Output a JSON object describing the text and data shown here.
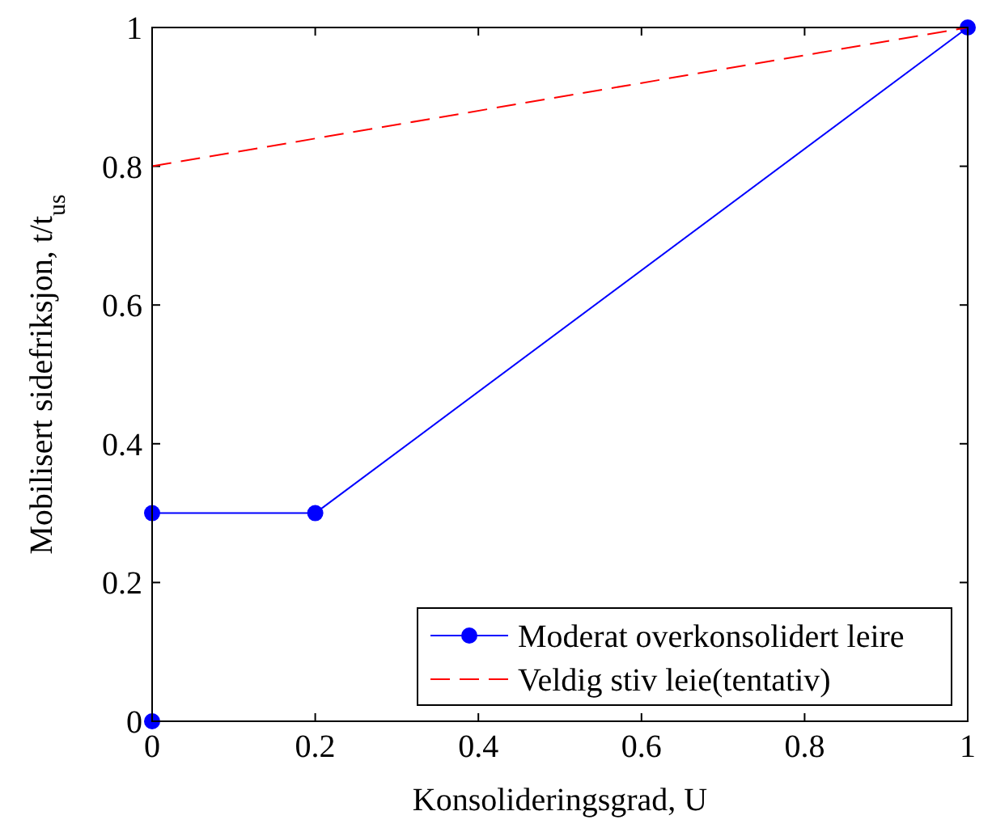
{
  "chart_data": {
    "type": "line",
    "xlabel": "Konsolideringsgrad, U",
    "ylabel": "Mobilisert sidefriksjon, t/t$_{us}$",
    "xlim": [
      0,
      1
    ],
    "ylim": [
      0,
      1
    ],
    "xticks": [
      0,
      0.2,
      0.4,
      0.6,
      0.8,
      1
    ],
    "yticks": [
      0,
      0.2,
      0.4,
      0.6,
      0.8,
      1
    ],
    "legend": "bottom right",
    "series": [
      {
        "name": "Moderat overkonsolidert leire",
        "color": "#0000ff",
        "x": [
          0,
          0,
          0.2,
          1
        ],
        "values": [
          0,
          0.3,
          0.3,
          1
        ],
        "marker": "circle",
        "line_style": "solid"
      },
      {
        "name": "Veldig stiv leie(tentativ)",
        "color": "#ff0000",
        "x": [
          0,
          1
        ],
        "values": [
          0.8,
          1
        ],
        "marker": "none",
        "line_style": "dashed"
      }
    ]
  }
}
